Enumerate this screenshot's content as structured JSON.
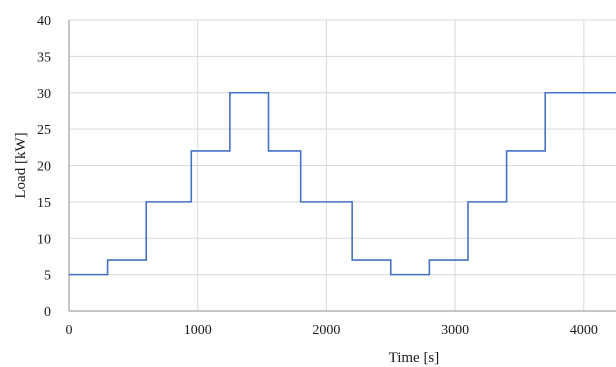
{
  "chart_data": {
    "type": "line",
    "step": true,
    "xlabel": "Time [s]",
    "ylabel": "Load [kW]",
    "xlim": [
      0,
      4250
    ],
    "ylim": [
      0,
      40
    ],
    "xticks": [
      0,
      1000,
      2000,
      3000,
      4000
    ],
    "yticks": [
      0,
      5,
      10,
      15,
      20,
      25,
      30,
      35,
      40
    ],
    "grid": true,
    "legend": "none",
    "color": "#4472c4",
    "series": [
      {
        "x": [
          0,
          300,
          600,
          950,
          1250,
          1550,
          1800,
          2200,
          2500,
          2800,
          3100,
          3400,
          3700,
          4250
        ],
        "values": [
          5,
          7,
          15,
          22,
          30,
          22,
          15,
          7,
          5,
          7,
          15,
          22,
          30,
          30
        ]
      }
    ]
  }
}
